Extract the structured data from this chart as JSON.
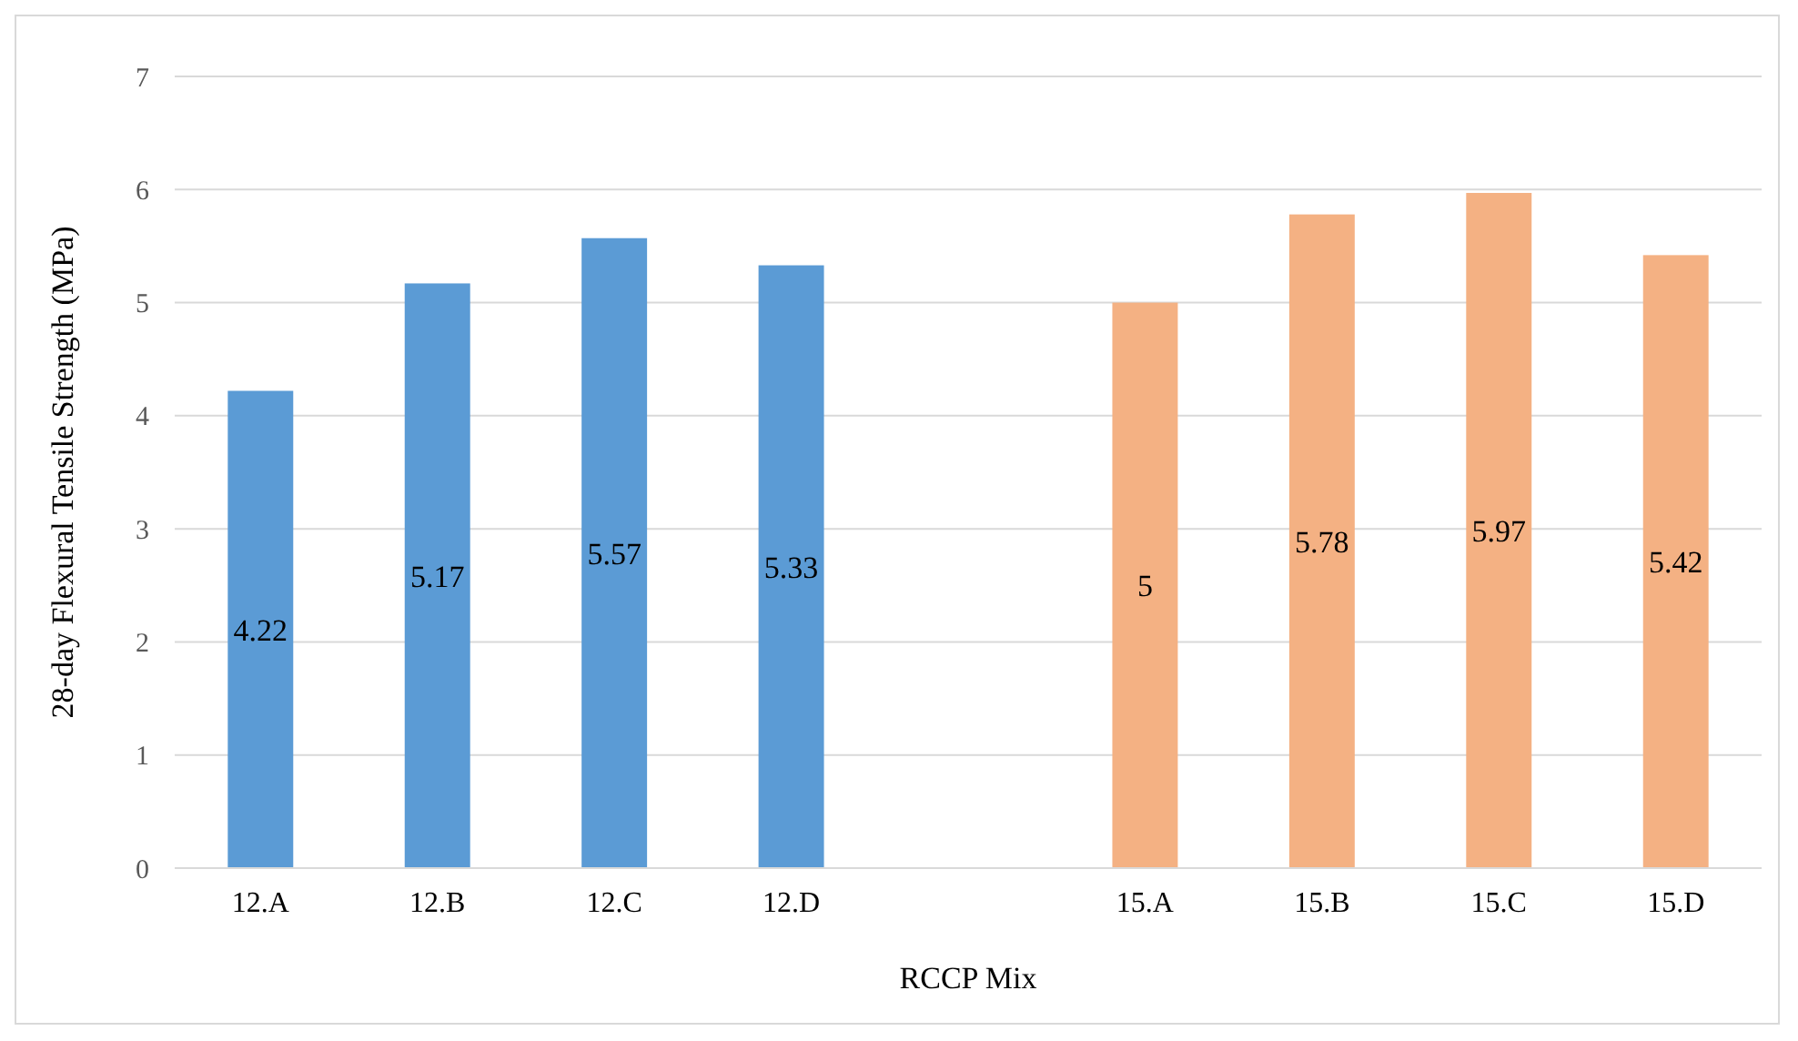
{
  "chart_data": {
    "type": "bar",
    "xlabel": "RCCP Mix",
    "ylabel": "28-day Flexural Tensile Strength (MPa)",
    "categories": [
      "12.A",
      "12.B",
      "12.C",
      "12.D",
      null,
      "15.A",
      "15.B",
      "15.C",
      "15.D"
    ],
    "values": [
      4.22,
      5.17,
      5.57,
      5.33,
      null,
      5,
      5.78,
      5.97,
      5.42
    ],
    "colors": [
      "#5b9bd5",
      "#5b9bd5",
      "#5b9bd5",
      "#5b9bd5",
      null,
      "#f4b183",
      "#f4b183",
      "#f4b183",
      "#f4b183"
    ],
    "ylim": [
      0,
      7
    ],
    "yticks": [
      0,
      1,
      2,
      3,
      4,
      5,
      6,
      7
    ],
    "grid": "y",
    "data_labels": true
  }
}
